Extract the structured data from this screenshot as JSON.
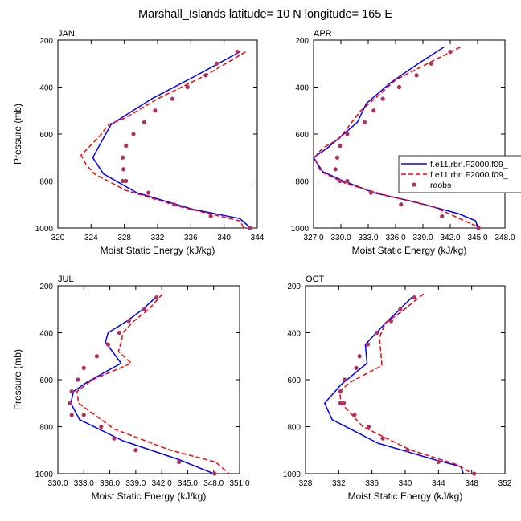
{
  "title": "Marshall_Islands  latitude= 10 N longitude= 165 E",
  "legend": {
    "entries": [
      {
        "label": "f.e11.rbn.F2000.f09_",
        "color": "#0000ff",
        "style": "solid"
      },
      {
        "label": "f.e11.rbn.F2000.f09_",
        "color": "#ff0000",
        "style": "dashed"
      },
      {
        "label": "raobs",
        "color": "#b03060",
        "style": "marker"
      }
    ],
    "placement": "right"
  },
  "chart_data": [
    {
      "type": "line",
      "panel_label": "JAN",
      "xlabel": "Moist Static Energy (kJ/kg)",
      "ylabel": "Pressure (mb)",
      "xlim": [
        320,
        344
      ],
      "ylim": [
        1000,
        200
      ],
      "xticks": [
        320,
        324,
        328,
        332,
        336,
        340,
        344
      ],
      "xtick_labels": [
        "320",
        "324",
        "328",
        "332",
        "336",
        "340",
        "344"
      ],
      "yticks": [
        200,
        400,
        600,
        800,
        1000
      ],
      "ytick_labels": [
        "200",
        "400",
        "600",
        "800",
        "1000"
      ],
      "series": [
        {
          "label": "f.e11.rbn.F2000.f09_",
          "color": "#0000ff",
          "dash": "none",
          "x": [
            341.9,
            336.7,
            331.3,
            327.7,
            326.4,
            325.6,
            324.2,
            325.5,
            329.5,
            336.2,
            341.9,
            343.2
          ],
          "y": [
            250,
            350,
            450,
            530,
            560,
            610,
            700,
            770,
            850,
            920,
            960,
            1000
          ]
        },
        {
          "label": "f.e11.rbn.F2000.f09_",
          "color": "#ff0000",
          "dash": "dashed",
          "x": [
            342.6,
            337.8,
            332.0,
            328.2,
            326.1,
            325.0,
            322.8,
            323.4,
            324.4,
            328.2,
            334.8,
            341.9,
            342.4
          ],
          "y": [
            250,
            350,
            450,
            530,
            560,
            610,
            690,
            730,
            770,
            840,
            910,
            970,
            1000
          ]
        },
        {
          "label": "raobs",
          "color": "#b03060",
          "dash": "marker",
          "x": [
            341.6,
            339.1,
            337.8,
            335.6,
            333.8,
            331.7,
            330.4,
            329.1,
            328.2,
            327.8,
            327.9,
            327.8,
            328.2,
            330.9,
            334.0,
            338.4,
            343.1
          ],
          "y": [
            250,
            300,
            350,
            400,
            450,
            500,
            550,
            600,
            650,
            700,
            750,
            800,
            800,
            850,
            900,
            950,
            1000
          ]
        }
      ]
    },
    {
      "type": "line",
      "panel_label": "APR",
      "xlabel": "Moist Static Energy (kJ/kg)",
      "ylabel": "Pressure (mb)",
      "xlim": [
        327.0,
        348.0
      ],
      "ylim": [
        1000,
        200
      ],
      "xticks": [
        327.0,
        330.0,
        333.0,
        336.0,
        339.0,
        342.0,
        345.0,
        348.0
      ],
      "xtick_labels": [
        "327.0",
        "330.0",
        "333.0",
        "336.0",
        "339.0",
        "342.0",
        "345.0",
        "348.0"
      ],
      "yticks": [
        200,
        400,
        600,
        800,
        1000
      ],
      "ytick_labels": [
        "200",
        "400",
        "600",
        "800",
        "1000"
      ],
      "series": [
        {
          "label": "f.e11.rbn.F2000.f09_",
          "color": "#0000ff",
          "dash": "none",
          "x": [
            341.3,
            338.5,
            335.5,
            333.4,
            332.8,
            331.8,
            329.7,
            328.5,
            327.0,
            328.0,
            330.3,
            333.6,
            338.2,
            343.0,
            344.8,
            345.0
          ],
          "y": [
            230,
            300,
            380,
            450,
            470,
            550,
            620,
            660,
            700,
            760,
            800,
            850,
            890,
            940,
            970,
            1000
          ]
        },
        {
          "label": "f.e11.rbn.F2000.f09_",
          "color": "#ff0000",
          "dash": "dashed",
          "x": [
            343.1,
            339.5,
            336.0,
            334.0,
            332.2,
            329.8,
            328.0,
            327.1,
            327.8,
            330.5,
            334.8,
            340.2,
            345.3
          ],
          "y": [
            230,
            300,
            370,
            440,
            500,
            620,
            660,
            700,
            760,
            810,
            860,
            910,
            1000
          ]
        },
        {
          "label": "raobs",
          "color": "#b03060",
          "dash": "marker",
          "x": [
            342.0,
            339.9,
            338.3,
            336.4,
            334.6,
            333.6,
            332.6,
            330.7,
            329.9,
            329.6,
            329.4,
            329.9,
            330.7,
            333.3,
            336.6,
            341.1,
            345.1
          ],
          "y": [
            250,
            300,
            350,
            400,
            450,
            500,
            550,
            600,
            650,
            700,
            750,
            800,
            800,
            850,
            900,
            950,
            1000
          ]
        }
      ]
    },
    {
      "type": "line",
      "panel_label": "JUL",
      "xlabel": "Moist Static Energy (kJ/kg)",
      "ylabel": "Pressure (mb)",
      "xlim": [
        330.0,
        351.0
      ],
      "ylim": [
        1000,
        200
      ],
      "xticks": [
        330.0,
        333.0,
        336.0,
        339.0,
        342.0,
        345.0,
        348.0,
        351.0
      ],
      "xtick_labels": [
        "330.0",
        "333.0",
        "336.0",
        "339.0",
        "342.0",
        "345.0",
        "348.0",
        "351.0"
      ],
      "yticks": [
        200,
        400,
        600,
        800,
        1000
      ],
      "ytick_labels": [
        "200",
        "400",
        "600",
        "800",
        "1000"
      ],
      "series": [
        {
          "label": "f.e11.rbn.F2000.f09_",
          "color": "#0000ff",
          "dash": "none",
          "x": [
            341.3,
            339.8,
            338.0,
            335.8,
            335.5,
            337.3,
            333.4,
            331.8,
            331.5,
            332.5,
            337.5,
            344.0,
            348.0
          ],
          "y": [
            250,
            300,
            350,
            400,
            440,
            530,
            610,
            650,
            700,
            770,
            860,
            940,
            1000
          ]
        },
        {
          "label": "f.e11.rbn.F2000.f09_",
          "color": "#ff0000",
          "dash": "dashed",
          "x": [
            342.1,
            340.5,
            338.8,
            337.5,
            337.4,
            337.0,
            338.5,
            334.0,
            332.2,
            332.4,
            336.5,
            343.0,
            348.2,
            349.8
          ],
          "y": [
            235,
            300,
            350,
            400,
            430,
            480,
            530,
            600,
            650,
            700,
            810,
            900,
            950,
            1000
          ]
        },
        {
          "label": "raobs",
          "color": "#b03060",
          "dash": "marker",
          "x": [
            341.4,
            340.0,
            338.2,
            337.1,
            335.8,
            334.5,
            333.0,
            332.3,
            331.6,
            331.4,
            331.6,
            333.0,
            335.0,
            336.5,
            339.0,
            344.0,
            348.1
          ],
          "y": [
            250,
            300,
            350,
            400,
            450,
            500,
            550,
            600,
            650,
            700,
            750,
            750,
            800,
            850,
            900,
            950,
            1000
          ]
        }
      ]
    },
    {
      "type": "line",
      "panel_label": "OCT",
      "xlabel": "Moist Static Energy (kJ/kg)",
      "ylabel": "Pressure (mb)",
      "xlim": [
        328,
        352
      ],
      "ylim": [
        1000,
        200
      ],
      "xticks": [
        328,
        332,
        336,
        340,
        344,
        348,
        352
      ],
      "xtick_labels": [
        "328",
        "332",
        "336",
        "340",
        "344",
        "348",
        "352"
      ],
      "yticks": [
        200,
        400,
        600,
        800,
        1000
      ],
      "ytick_labels": [
        "200",
        "400",
        "600",
        "800",
        "1000"
      ],
      "series": [
        {
          "label": "f.e11.rbn.F2000.f09_",
          "color": "#0000ff",
          "dash": "none",
          "x": [
            340.8,
            337.6,
            335.2,
            335.4,
            332.3,
            330.3,
            331.2,
            336.7,
            343.5,
            346.7,
            347.0
          ],
          "y": [
            250,
            360,
            450,
            530,
            620,
            700,
            770,
            870,
            940,
            970,
            1000
          ]
        },
        {
          "label": "f.e11.rbn.F2000.f09_",
          "color": "#ff0000",
          "dash": "dashed",
          "x": [
            342.2,
            339.9,
            337.6,
            336.9,
            337.2,
            333.4,
            332.1,
            332.3,
            334.9,
            340.7,
            346.1,
            348.1
          ],
          "y": [
            235,
            300,
            360,
            420,
            540,
            610,
            650,
            700,
            800,
            900,
            960,
            1000
          ]
        },
        {
          "label": "raobs",
          "color": "#b03060",
          "dash": "marker",
          "x": [
            341.1,
            339.4,
            338.3,
            336.6,
            335.5,
            334.5,
            334.1,
            332.7,
            332.2,
            332.2,
            332.6,
            333.9,
            335.6,
            337.3,
            340.3,
            344.0,
            348.3
          ],
          "y": [
            250,
            300,
            350,
            400,
            450,
            500,
            550,
            600,
            650,
            700,
            700,
            750,
            800,
            850,
            900,
            950,
            1000
          ]
        }
      ]
    }
  ]
}
